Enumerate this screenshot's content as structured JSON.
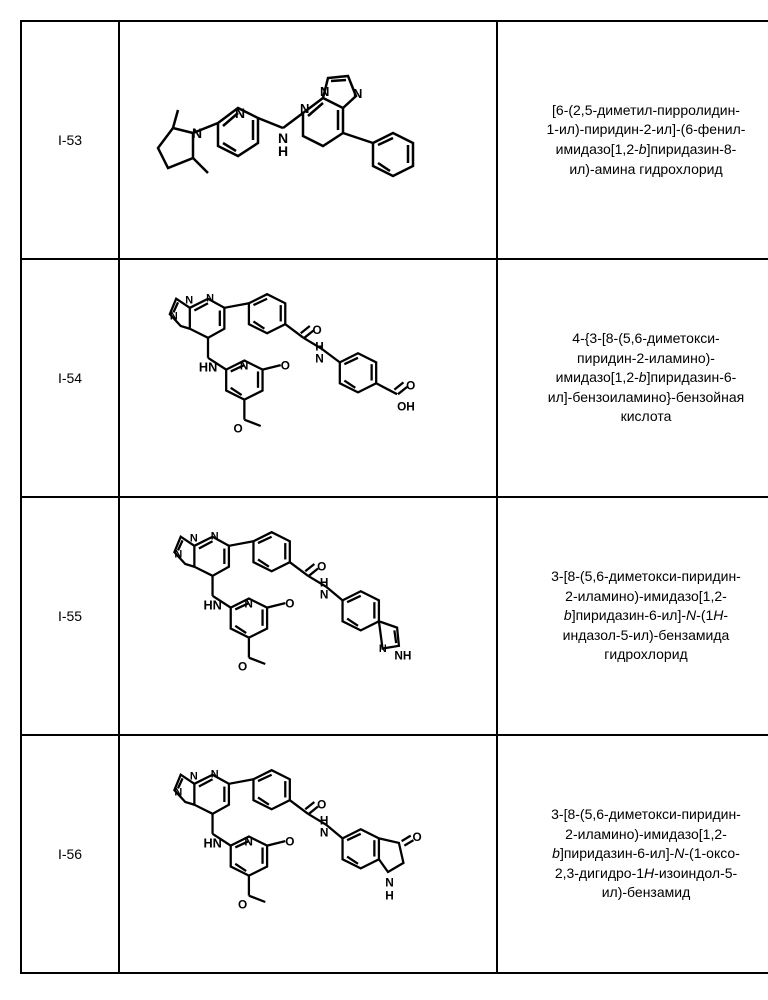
{
  "rows": [
    {
      "id": "I-53",
      "name_lines": [
        "[6-(2,5-диметил-пирролидин-",
        "1-ил)-пиридин-2-ил]-(6-фенил-",
        "имидазо[1,2-<i>b</i>]пиридазин-8-",
        "ил)-амина гидрохлорид"
      ]
    },
    {
      "id": "I-54",
      "name_lines": [
        "4-{3-[8-(5,6-диметокси-",
        "пиридин-2-иламино)-",
        "имидазо[1,2-<i>b</i>]пиридазин-6-",
        "ил]-бензоиламино}-бензойная",
        "кислота"
      ]
    },
    {
      "id": "I-55",
      "name_lines": [
        "3-[8-(5,6-диметокси-пиридин-",
        "2-иламино)-имидазо[1,2-",
        "<i>b</i>]пиридазин-6-ил]-<i>N</i>-(1<i>H</i>-",
        "индазол-5-ил)-бензамида",
        "гидрохлорид"
      ]
    },
    {
      "id": "I-56",
      "name_lines": [
        "3-[8-(5,6-диметокси-пиридин-",
        "2-иламино)-имидазо[1,2-",
        "<i>b</i>]пиридазин-6-ил]-<i>N</i>-(1-оксо-",
        "2,3-дигидро-1<i>H</i>-изоиндол-5-",
        "ил)-бензамид"
      ]
    }
  ],
  "styling": {
    "border_color": "#000000",
    "border_width": 2,
    "font_size_id": 14,
    "font_size_name": 14,
    "background": "#ffffff",
    "stroke_mol": "#000000",
    "stroke_width_mol": 2.5
  }
}
